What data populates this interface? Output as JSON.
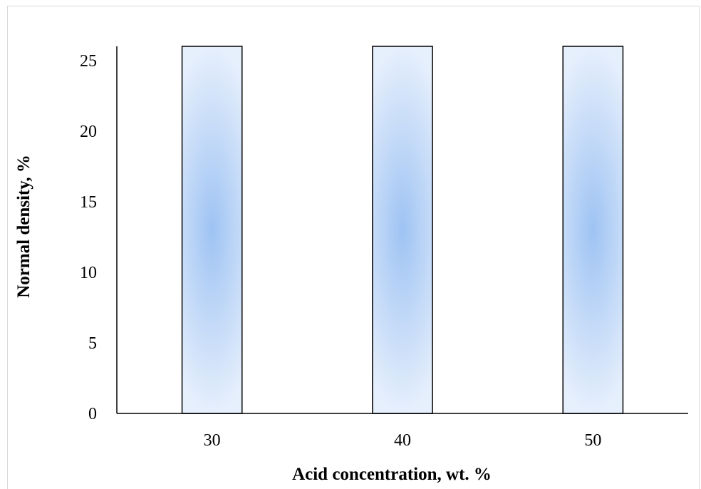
{
  "chart_data": {
    "type": "bar",
    "categories": [
      "30",
      "40",
      "50"
    ],
    "values": [
      26,
      26,
      26
    ],
    "xlabel": "Acid concentration, wt. %",
    "ylabel": "Normal density, %",
    "ylim": [
      0,
      26
    ],
    "yticks": [
      0,
      5,
      10,
      15,
      20,
      25
    ],
    "grid": false,
    "legend": "none",
    "colors": {
      "bar_edge": "#6b6b6b",
      "bar_center": "#9ec3f3",
      "bar_light": "#e6effc",
      "axis": "#000000"
    }
  }
}
